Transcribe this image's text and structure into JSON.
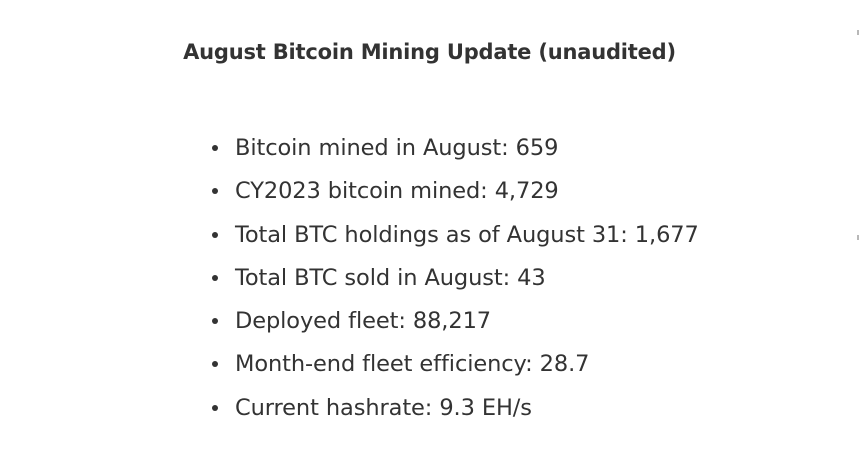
{
  "article": {
    "title": "August Bitcoin Mining Update (unaudited)",
    "items": [
      {
        "text": "Bitcoin mined in August: 659"
      },
      {
        "text": "CY2023 bitcoin mined: 4,729"
      },
      {
        "text": "Total BTC holdings as of August 31: 1,677"
      },
      {
        "text": "Total BTC sold in August: 43"
      },
      {
        "text": "Deployed fleet: 88,217"
      },
      {
        "text": "Month-end fleet efficiency: 28.7"
      },
      {
        "text": "Current hashrate: 9.3 EH/s"
      }
    ]
  }
}
